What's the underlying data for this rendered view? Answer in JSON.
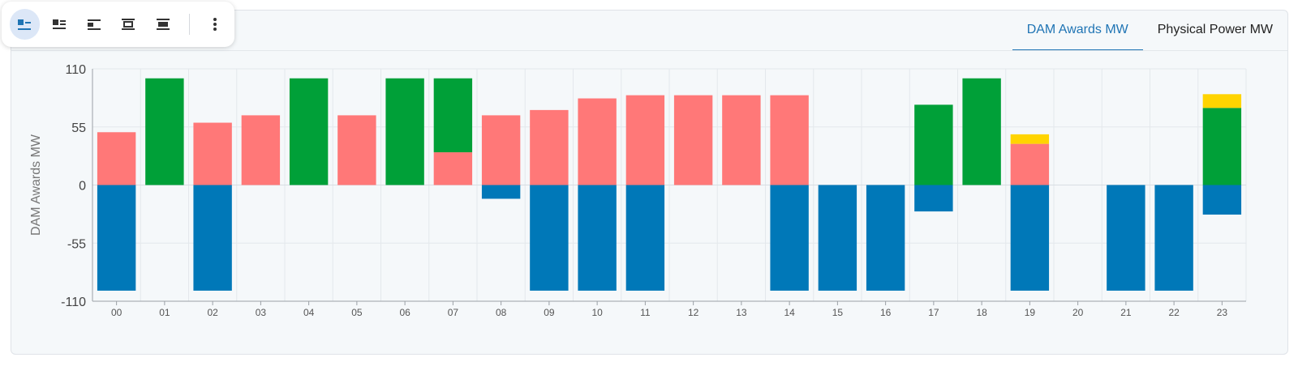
{
  "tabs": [
    {
      "label": "DAM Awards MW",
      "active": true
    },
    {
      "label": "Physical Power MW",
      "active": false
    }
  ],
  "toolbar": {
    "buttons": [
      {
        "icon": "layout-left-icon",
        "active": true
      },
      {
        "icon": "layout-list-icon",
        "active": false
      },
      {
        "icon": "layout-compact-icon",
        "active": false
      },
      {
        "icon": "layout-center-icon",
        "active": false
      },
      {
        "icon": "layout-block-icon",
        "active": false
      }
    ],
    "more_icon": "more-vertical-icon"
  },
  "colors": {
    "green": "#00a038",
    "red": "#ff7878",
    "blue": "#0078b8",
    "yellow": "#ffd400",
    "accent": "#1f74b4"
  },
  "chart_data": {
    "type": "bar",
    "stacked": true,
    "ylabel": "DAM Awards MW",
    "xlabel": "",
    "title": "",
    "ylim": [
      -110,
      110
    ],
    "yticks": [
      110,
      55,
      0,
      -55,
      -110
    ],
    "grid": true,
    "categories": [
      "00",
      "01",
      "02",
      "03",
      "04",
      "05",
      "06",
      "07",
      "08",
      "09",
      "10",
      "11",
      "12",
      "13",
      "14",
      "15",
      "16",
      "17",
      "18",
      "19",
      "20",
      "21",
      "22",
      "23"
    ],
    "series": [
      {
        "color": "#ff7878",
        "values": [
          50,
          0,
          59,
          66,
          0,
          66,
          0,
          31,
          66,
          71,
          82,
          85,
          85,
          85,
          85,
          0,
          0,
          0,
          0,
          39,
          0,
          0,
          0,
          0
        ]
      },
      {
        "color": "#00a038",
        "values": [
          0,
          101,
          0,
          0,
          101,
          0,
          101,
          70,
          0,
          0,
          0,
          0,
          0,
          0,
          0,
          0,
          0,
          76,
          101,
          0,
          0,
          0,
          0,
          73
        ]
      },
      {
        "color": "#ffd400",
        "values": [
          0,
          0,
          0,
          0,
          0,
          0,
          0,
          0,
          0,
          0,
          0,
          0,
          0,
          0,
          0,
          0,
          0,
          0,
          0,
          9,
          0,
          0,
          0,
          13
        ]
      },
      {
        "color": "#0078b8",
        "values": [
          -100,
          0,
          -100,
          0,
          0,
          0,
          0,
          0,
          -13,
          -100,
          -100,
          -100,
          0,
          0,
          -100,
          -100,
          -100,
          -25,
          0,
          -100,
          0,
          -100,
          -100,
          -28
        ]
      }
    ]
  }
}
